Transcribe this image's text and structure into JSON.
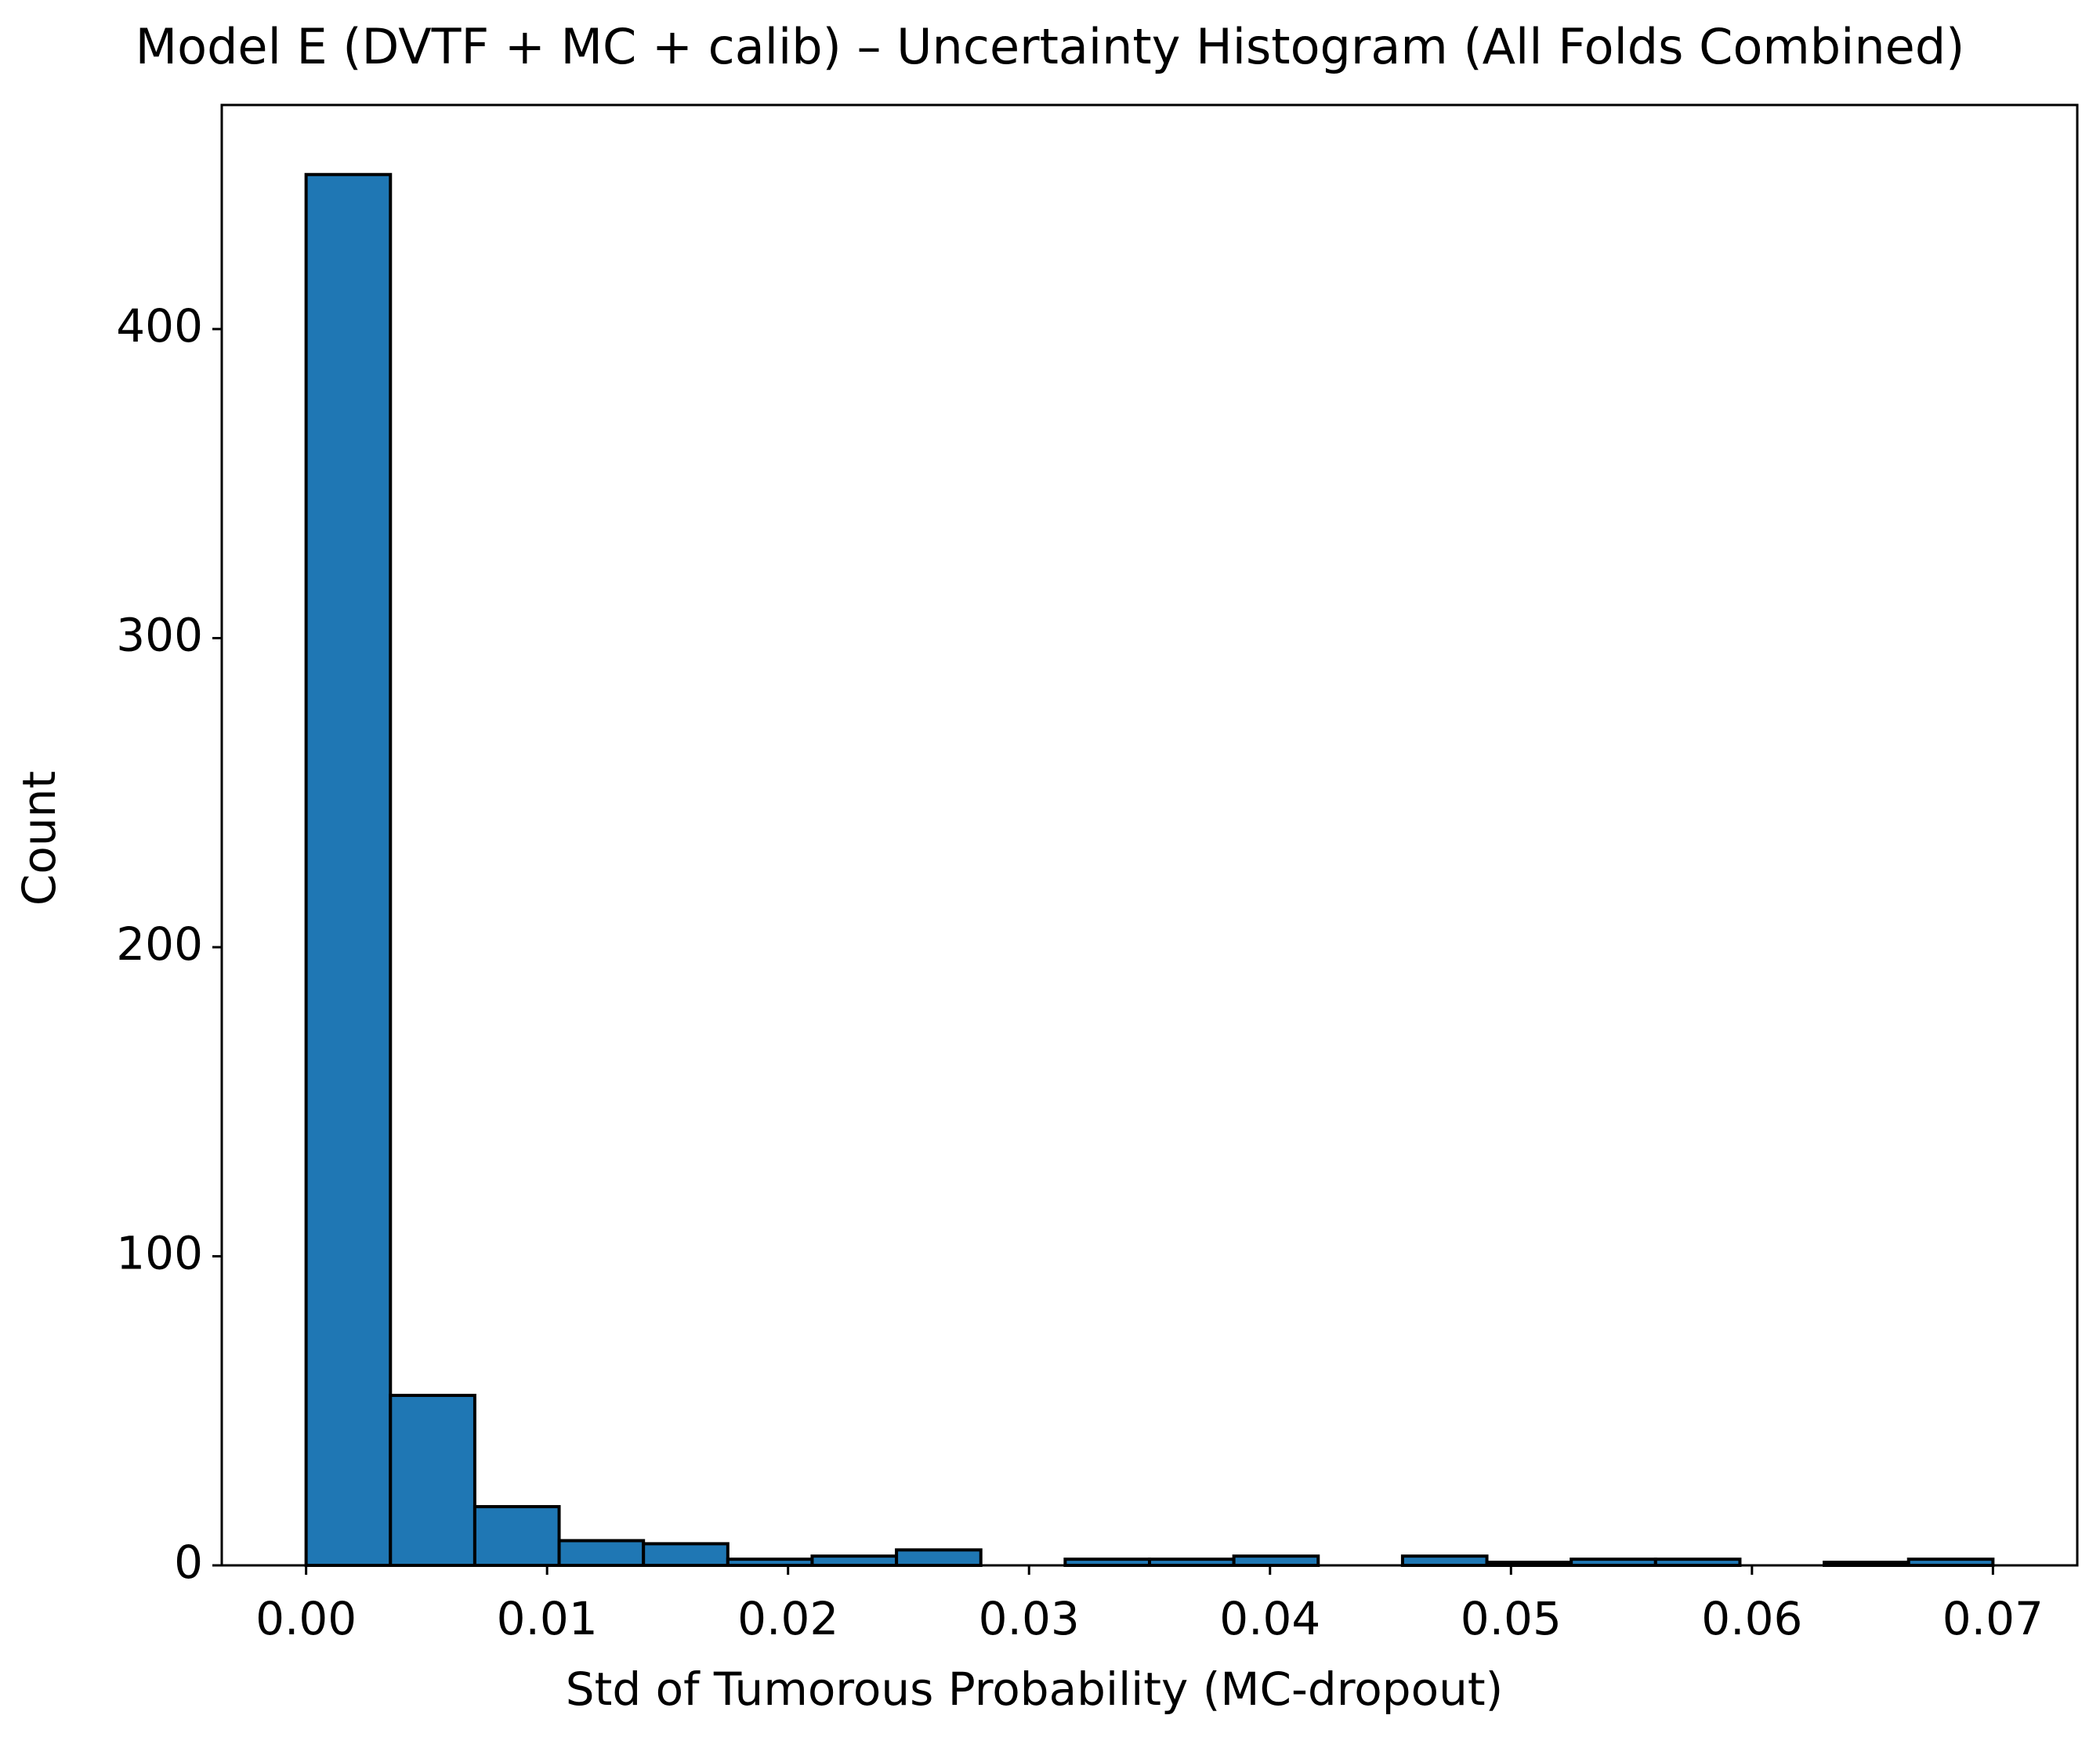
{
  "chart_data": {
    "type": "histogram",
    "title": "Model E (DVTF + MC + calib) – Uncertainty Histogram (All Folds Combined)",
    "x_label": "Std of Tumorous Probability (MC-dropout)",
    "y_label": "Count",
    "bins": [
      0,
      0.0035,
      0.007,
      0.0105,
      0.014,
      0.0175,
      0.021,
      0.0245,
      0.028,
      0.0315,
      0.035,
      0.0385,
      0.042,
      0.0455,
      0.049,
      0.0525,
      0.056,
      0.0595,
      0.063,
      0.0665,
      0.07
    ],
    "counts": [
      450,
      55,
      19,
      8,
      7,
      2,
      3,
      5,
      0,
      2,
      2,
      3,
      0,
      3,
      1,
      2,
      2,
      0,
      1,
      2
    ],
    "color": "#1f77b4",
    "edgecolor": "#000000",
    "xlim": [
      -0.0035,
      0.0735
    ],
    "ylim": [
      0,
      472.5
    ],
    "xticks": [
      {
        "value": 0,
        "label": "0.00"
      },
      0.01,
      0.02,
      0.03,
      0.04,
      0.05,
      0.06,
      0.07
    ],
    "yticks": [
      0,
      100,
      200,
      300,
      400
    ],
    "grid": false
  }
}
